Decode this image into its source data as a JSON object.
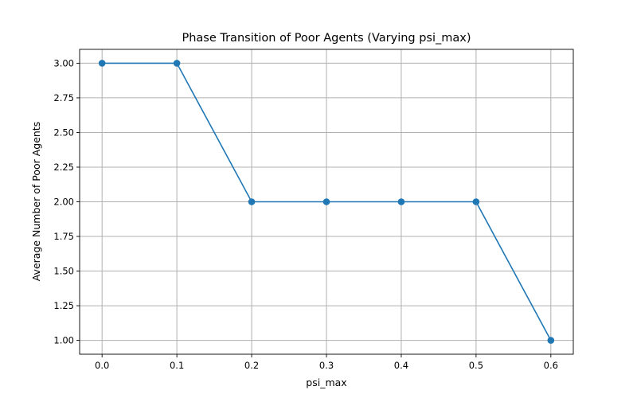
{
  "chart_data": {
    "type": "line",
    "title": "Phase Transition of Poor Agents (Varying psi_max)",
    "xlabel": "psi_max",
    "ylabel": "Average Number of Poor Agents",
    "x": [
      0.0,
      0.1,
      0.2,
      0.3,
      0.4,
      0.5,
      0.6
    ],
    "series": [
      {
        "values": [
          3.0,
          3.0,
          2.0,
          2.0,
          2.0,
          2.0,
          1.0
        ],
        "color": "#1f77b4",
        "marker": "circle"
      }
    ],
    "xlim": [
      -0.03,
      0.63
    ],
    "ylim": [
      0.9,
      3.1
    ],
    "x_ticks": [
      0.0,
      0.1,
      0.2,
      0.3,
      0.4,
      0.5,
      0.6
    ],
    "x_tick_labels": [
      "0.0",
      "0.1",
      "0.2",
      "0.3",
      "0.4",
      "0.5",
      "0.6"
    ],
    "y_ticks": [
      1.0,
      1.25,
      1.5,
      1.75,
      2.0,
      2.25,
      2.5,
      2.75,
      3.0
    ],
    "y_tick_labels": [
      "1.00",
      "1.25",
      "1.50",
      "1.75",
      "2.00",
      "2.25",
      "2.50",
      "2.75",
      "3.00"
    ],
    "grid": true,
    "legend": "none"
  }
}
